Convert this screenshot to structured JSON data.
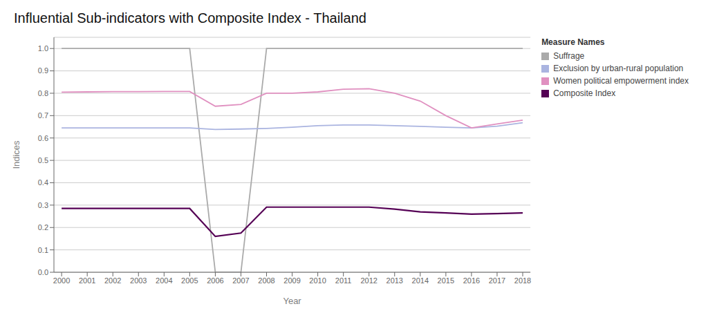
{
  "chart_data": {
    "type": "line",
    "title": "Influential Sub-indicators with Composite Index - Thailand",
    "x_label": "Year",
    "y_label": "Indices",
    "x": [
      2000,
      2001,
      2002,
      2003,
      2004,
      2005,
      2006,
      2007,
      2008,
      2009,
      2010,
      2011,
      2012,
      2013,
      2014,
      2015,
      2016,
      2017,
      2018
    ],
    "series": [
      {
        "name": "Suffrage",
        "color": "#aaaaaa",
        "values": [
          1.0,
          1.0,
          1.0,
          1.0,
          1.0,
          1.0,
          0.0,
          0.0,
          1.0,
          1.0,
          1.0,
          1.0,
          1.0,
          1.0,
          1.0,
          1.0,
          1.0,
          1.0,
          1.0
        ]
      },
      {
        "name": "Exclusion by urban-rural population",
        "color": "#aab4e0",
        "values": [
          0.645,
          0.645,
          0.645,
          0.645,
          0.645,
          0.645,
          0.638,
          0.64,
          0.643,
          0.648,
          0.655,
          0.658,
          0.658,
          0.655,
          0.652,
          0.648,
          0.645,
          0.653,
          0.668
        ]
      },
      {
        "name": "Women political empowerment index",
        "color": "#e090c0",
        "values": [
          0.805,
          0.806,
          0.807,
          0.807,
          0.808,
          0.808,
          0.742,
          0.75,
          0.8,
          0.8,
          0.806,
          0.818,
          0.82,
          0.8,
          0.765,
          0.7,
          0.645,
          0.663,
          0.68
        ]
      },
      {
        "name": "Composite Index",
        "color": "#550055",
        "values": [
          0.285,
          0.285,
          0.285,
          0.285,
          0.285,
          0.285,
          0.16,
          0.175,
          0.291,
          0.291,
          0.291,
          0.291,
          0.291,
          0.282,
          0.27,
          0.265,
          0.26,
          0.262,
          0.265
        ]
      }
    ],
    "xlim": [
      1999.7,
      2018.3
    ],
    "xticks": [
      2000,
      2001,
      2002,
      2003,
      2004,
      2005,
      2006,
      2007,
      2008,
      2009,
      2010,
      2011,
      2012,
      2013,
      2014,
      2015,
      2016,
      2017,
      2018
    ],
    "ylim": [
      0.0,
      1.05
    ],
    "yticks": [
      {
        "value": 0.0,
        "label": "0.0"
      },
      0.1,
      0.2,
      0.3,
      0.4,
      0.5,
      0.6,
      0.7,
      0.8,
      0.9,
      {
        "value": 1.0,
        "label": "1.0"
      }
    ],
    "grid": true,
    "legend": "right",
    "legend_title": "Measure Names"
  }
}
